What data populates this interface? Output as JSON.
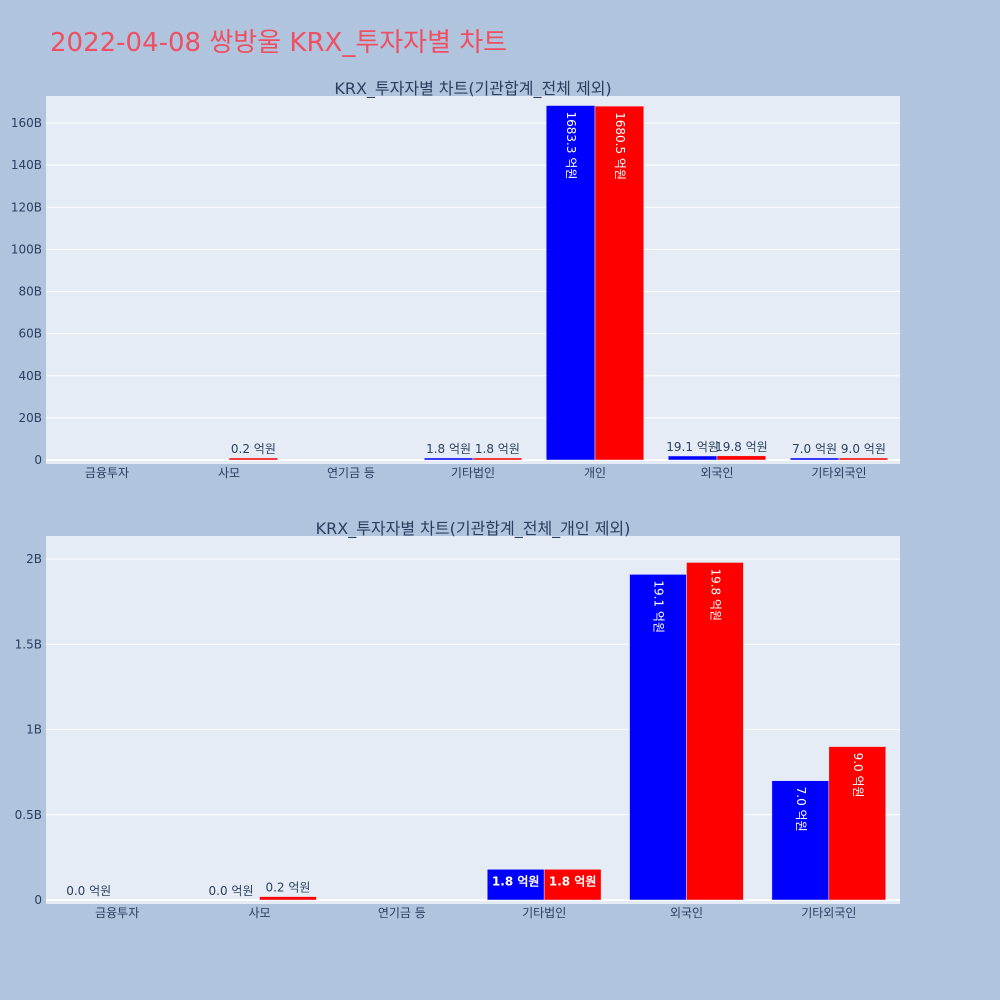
{
  "page_title": "2022-04-08 쌍방울 KRX_투자자별 차트",
  "colors": {
    "background": "#b0c4de",
    "plot_bg": "#e5ecf6",
    "title": "#ef4f62",
    "series_a": "#0000ff",
    "series_b": "#ff0000"
  },
  "chart_data": [
    {
      "type": "bar",
      "title": "KRX_투자자별 차트(기관합계_전체 제외)",
      "categories": [
        "금융투자",
        "사모",
        "연기금 등",
        "기타법인",
        "개인",
        "외국인",
        "기타외국인"
      ],
      "yticks": [
        0,
        20,
        40,
        60,
        80,
        100,
        120,
        140,
        160
      ],
      "ytick_labels": [
        "0",
        "20B",
        "40B",
        "60B",
        "80B",
        "100B",
        "120B",
        "140B",
        "160B"
      ],
      "ylim": [
        0,
        170
      ],
      "yunit": "B",
      "grid": true,
      "series": [
        {
          "color": "#0000ff",
          "values": [
            0.0,
            0.0,
            0.0,
            0.18,
            168.33,
            1.91,
            0.7
          ],
          "labels": [
            "",
            "",
            "",
            "1.8 억원",
            "1683.3 억원",
            "19.1 억원",
            "7.0 억원"
          ]
        },
        {
          "color": "#ff0000",
          "values": [
            0.0,
            0.02,
            0.0,
            0.18,
            168.05,
            1.98,
            0.9
          ],
          "labels": [
            "",
            "0.2 억원",
            "",
            "1.8 억원",
            "1680.5 억원",
            "19.8 억원",
            "9.0 억원"
          ]
        }
      ]
    },
    {
      "type": "bar",
      "title": "KRX_투자자별 차트(기관합계_전체_개인 제외)",
      "categories": [
        "금융투자",
        "사모",
        "연기금 등",
        "기타법인",
        "외국인",
        "기타외국인"
      ],
      "yticks": [
        0,
        0.5,
        1,
        1.5,
        2
      ],
      "ytick_labels": [
        "0",
        "0.5B",
        "1B",
        "1.5B",
        "2B"
      ],
      "ylim": [
        0,
        2.1
      ],
      "yunit": "B",
      "grid": true,
      "series": [
        {
          "color": "#0000ff",
          "values": [
            0.0,
            0.0,
            0.0,
            0.18,
            1.91,
            0.7
          ],
          "labels": [
            "0.0 억원",
            "0.0 억원",
            "",
            "1.8 억원",
            "19.1 억원",
            "7.0 억원"
          ]
        },
        {
          "color": "#ff0000",
          "values": [
            0.0,
            0.02,
            0.0,
            0.18,
            1.98,
            0.9
          ],
          "labels": [
            "",
            "0.2 억원",
            "",
            "1.8 억원",
            "19.8 억원",
            "9.0 억원"
          ]
        }
      ]
    }
  ]
}
